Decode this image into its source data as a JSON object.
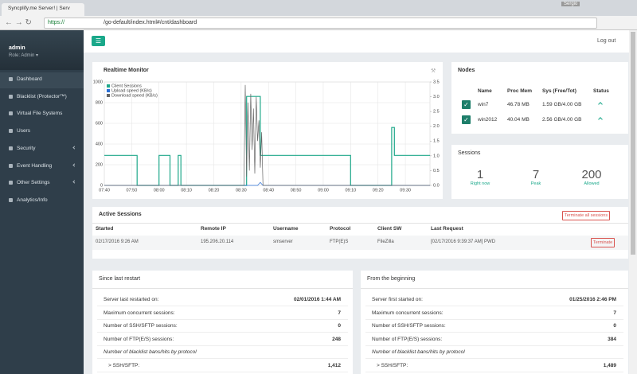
{
  "browser": {
    "tab_title": "Syncplify.me Server! | Serv",
    "profile": "Sergio",
    "url_scheme": "https://",
    "url_path": "/go-default/index.html#/cnt/dashboard"
  },
  "sidebar": {
    "user": "admin",
    "role": "Role: Admin ▾",
    "menu": [
      "Dashboard",
      "Blacklist (Protector™)",
      "Virtual File Systems",
      "Users",
      "Security",
      "Event Handling",
      "Other Settings",
      "Analytics/Info"
    ]
  },
  "topbar": {
    "logout": "Log out"
  },
  "monitor": {
    "title": "Realtime Monitor",
    "chart_data": {
      "type": "line",
      "xlim": [
        460,
        579
      ],
      "xticks": [
        {
          "value": 460,
          "label": "07:40"
        },
        {
          "value": 470,
          "label": "07:50"
        },
        {
          "value": 480,
          "label": "08:00"
        },
        {
          "value": 490,
          "label": "08:10"
        },
        {
          "value": 500,
          "label": "08:20"
        },
        {
          "value": 510,
          "label": "08:30"
        },
        {
          "value": 520,
          "label": "08:40"
        },
        {
          "value": 530,
          "label": "08:50"
        },
        {
          "value": 540,
          "label": "09:00"
        },
        {
          "value": 550,
          "label": "09:10"
        },
        {
          "value": 560,
          "label": "09:20"
        },
        {
          "value": 570,
          "label": "09:30"
        }
      ],
      "ylim": [
        0,
        1000
      ],
      "yticks": [
        0,
        200,
        400,
        600,
        800,
        1000
      ],
      "y2lim": [
        0,
        3.5
      ],
      "y2ticks": [
        {
          "value": 0,
          "label": "0.0"
        },
        0.5,
        {
          "value": 1,
          "label": "1.0"
        },
        1.5,
        {
          "value": 2,
          "label": "2.0"
        },
        2.5,
        {
          "value": 3,
          "label": "3.0"
        },
        3.5
      ],
      "grid": true,
      "series": [
        {
          "name": "Client Sessions",
          "color": "#1fa88a",
          "x": [
            460,
            472,
            472,
            480,
            480,
            484,
            484,
            487,
            487,
            488,
            488,
            512,
            512,
            517,
            517,
            550,
            550,
            565,
            565,
            566,
            566,
            579
          ],
          "values": [
            290,
            290,
            0,
            0,
            290,
            290,
            0,
            0,
            290,
            290,
            0,
            0,
            860,
            860,
            290,
            290,
            0,
            0,
            560,
            560,
            290,
            290
          ]
        },
        {
          "name": "Upload speed (KB/s)",
          "color": "#2a6fd6",
          "axis": "y2",
          "x": [
            460,
            516,
            517,
            518,
            579
          ],
          "values": [
            0,
            0,
            0.1,
            0,
            0
          ]
        },
        {
          "name": "Download speed (KB/s)",
          "color": "#666666",
          "axis": "y2",
          "x": [
            460,
            511,
            511.5,
            512,
            512.5,
            513,
            513.5,
            514,
            514.5,
            515,
            515.5,
            516,
            516.5,
            517,
            517.5,
            518,
            579
          ],
          "values": [
            0,
            0,
            3.4,
            0.3,
            2.8,
            0.5,
            3.1,
            1.2,
            2.6,
            0.4,
            3.0,
            1.5,
            2.2,
            0.6,
            1.8,
            0,
            0
          ]
        }
      ]
    }
  },
  "nodes": {
    "title": "Nodes",
    "headers": [
      "Name",
      "Proc Mem",
      "Sys (Free/Tot)",
      "Status"
    ],
    "rows": [
      [
        "win7",
        "46.78 MB",
        "1.59 GB/4.00 GB"
      ],
      [
        "win2012",
        "40.04 MB",
        "2.56 GB/4.00 GB"
      ]
    ]
  },
  "sessions": {
    "title": "Sessions",
    "stats": [
      {
        "value": "1",
        "label": "Right now"
      },
      {
        "value": "7",
        "label": "Peak"
      },
      {
        "value": "200",
        "label": "Allowed"
      }
    ]
  },
  "active_sessions": {
    "title": "Active Sessions",
    "terminate_all": "Terminate all sessions",
    "headers": [
      "Started",
      "Remote IP",
      "Username",
      "Protocol",
      "Client SW",
      "Last Request"
    ],
    "rows": [
      [
        "02/17/2016 9:26 AM",
        "195.206.20.114",
        "smserver",
        "FTP(E)S",
        "FileZilla",
        "[02/17/2016 9:39:37 AM] PWD"
      ]
    ],
    "terminate": "Terminate"
  },
  "stats_panels": [
    {
      "title": "Since last restart",
      "rows": [
        [
          "Server last restarted on:",
          "02/01/2016 1:44 AM"
        ],
        [
          "Maximum concurrent sessions:",
          "7"
        ],
        [
          "Number of SSH/SFTP sessions:",
          "0"
        ],
        [
          "Number of FTP(E/S) sessions:",
          "248"
        ],
        [
          "Number of blacklist bans/hits by protocol"
        ],
        [
          "> SSH/SFTP:",
          "1,412"
        ]
      ]
    },
    {
      "title": "From the beginning",
      "rows": [
        [
          "Server first started on:",
          "01/25/2016 2:46 PM"
        ],
        [
          "Maximum concurrent sessions:",
          "7"
        ],
        [
          "Number of SSH/SFTP sessions:",
          "0"
        ],
        [
          "Number of FTP(E/S) sessions:",
          "384"
        ],
        [
          "Number of blacklist bans/hits by protocol"
        ],
        [
          "> SSH/SFTP:",
          "1,489"
        ]
      ]
    }
  ]
}
